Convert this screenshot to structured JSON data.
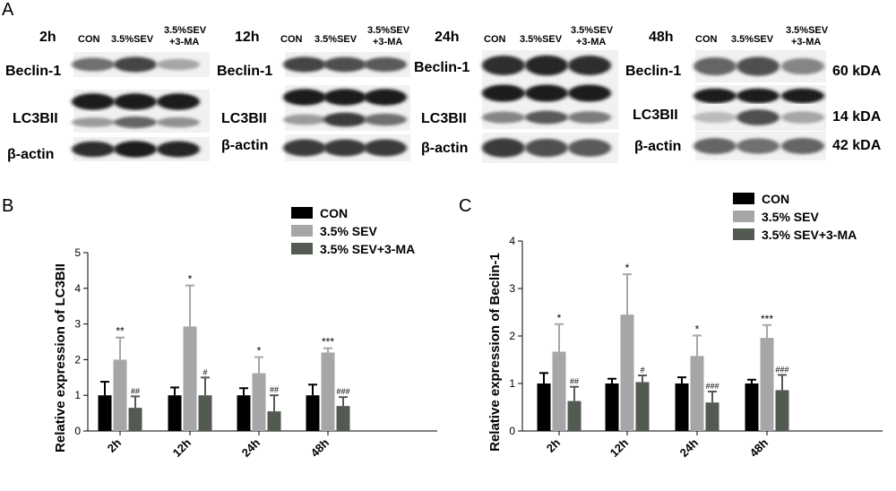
{
  "panel_a": {
    "label": "A",
    "groups": [
      {
        "time": "2h",
        "columns": [
          "CON",
          "3.5%SEV",
          "3.5%SEV\n+3-MA"
        ],
        "bands": {
          "beclin": [
            0.55,
            0.75,
            0.3
          ],
          "b2": [
            0.95,
            0.95,
            0.95
          ],
          "lc3": [
            0.35,
            0.6,
            0.4
          ],
          "actin": [
            0.85,
            0.95,
            0.9
          ]
        }
      },
      {
        "time": "12h",
        "columns": [
          "CON",
          "3.5%SEV",
          "3.5%SEV\n+3-MA"
        ],
        "bands": {
          "beclin": [
            0.75,
            0.7,
            0.65
          ],
          "b2": [
            0.95,
            0.95,
            0.95
          ],
          "lc3": [
            0.35,
            0.8,
            0.55
          ],
          "actin": [
            0.8,
            0.8,
            0.8
          ]
        }
      },
      {
        "time": "24h",
        "columns": [
          "CON",
          "3.5%SEV",
          "3.5%SEV\n+3-MA"
        ],
        "bands": {
          "beclin": [
            0.85,
            0.9,
            0.85
          ],
          "b2": [
            0.95,
            0.95,
            0.95
          ],
          "lc3": [
            0.45,
            0.65,
            0.5
          ],
          "actin": [
            0.8,
            0.7,
            0.65
          ]
        }
      },
      {
        "time": "48h",
        "columns": [
          "CON",
          "3.5%SEV",
          "3.5%SEV\n+3-MA"
        ],
        "bands": {
          "beclin": [
            0.6,
            0.7,
            0.45
          ],
          "b2": [
            0.95,
            0.95,
            0.95
          ],
          "lc3": [
            0.2,
            0.7,
            0.3
          ],
          "actin": [
            0.6,
            0.55,
            0.6
          ]
        }
      }
    ],
    "row_labels": [
      "Beclin-1",
      "LC3BII",
      "β-actin"
    ],
    "sizes": [
      "60 kDA",
      "14 kDA",
      "42 kDA"
    ]
  },
  "chart_data": [
    {
      "panel": "B",
      "type": "bar",
      "ylabel": "Relative expression of LC3BII",
      "categories": [
        "2h",
        "12h",
        "24h",
        "48h"
      ],
      "ylim": [
        0,
        5
      ],
      "yticks": [
        "0",
        "1",
        "2",
        "3",
        "4",
        "5"
      ],
      "legend": "top-right",
      "series": [
        {
          "name": "CON",
          "values": [
            1.0,
            1.0,
            1.0,
            1.0
          ],
          "errors": [
            0.38,
            0.22,
            0.2,
            0.3
          ],
          "color": "#000000",
          "marks": [
            "",
            "",
            "",
            ""
          ]
        },
        {
          "name": "3.5% SEV",
          "values": [
            2.0,
            2.93,
            1.62,
            2.2
          ],
          "errors": [
            0.62,
            1.15,
            0.45,
            0.12
          ],
          "color": "#a6a6a8",
          "marks": [
            "**",
            "*",
            "*",
            "***"
          ]
        },
        {
          "name": "3.5% SEV+3-MA",
          "values": [
            0.65,
            1.0,
            0.55,
            0.7
          ],
          "errors": [
            0.32,
            0.5,
            0.45,
            0.25
          ],
          "color": "#525a52",
          "marks": [
            "##",
            "#",
            "##",
            "###"
          ]
        }
      ]
    },
    {
      "panel": "C",
      "type": "bar",
      "ylabel": "Relative expression of Beclin-1",
      "categories": [
        "2h",
        "12h",
        "24h",
        "48h"
      ],
      "ylim": [
        0,
        4
      ],
      "yticks": [
        "0",
        "1",
        "2",
        "3",
        "4"
      ],
      "legend": "top-right",
      "series": [
        {
          "name": "CON",
          "values": [
            1.0,
            1.0,
            1.0,
            1.0
          ],
          "errors": [
            0.22,
            0.1,
            0.13,
            0.08
          ],
          "color": "#000000",
          "marks": [
            "",
            "",
            "",
            ""
          ]
        },
        {
          "name": "3.5% SEV",
          "values": [
            1.67,
            2.45,
            1.58,
            1.96
          ],
          "errors": [
            0.58,
            0.85,
            0.43,
            0.27
          ],
          "color": "#a6a6a8",
          "marks": [
            "*",
            "*",
            "*",
            "***"
          ]
        },
        {
          "name": "3.5% SEV+3-MA",
          "values": [
            0.63,
            1.03,
            0.6,
            0.86
          ],
          "errors": [
            0.3,
            0.14,
            0.23,
            0.32
          ],
          "color": "#525a52",
          "marks": [
            "##",
            "#",
            "###",
            "###"
          ]
        }
      ]
    }
  ]
}
